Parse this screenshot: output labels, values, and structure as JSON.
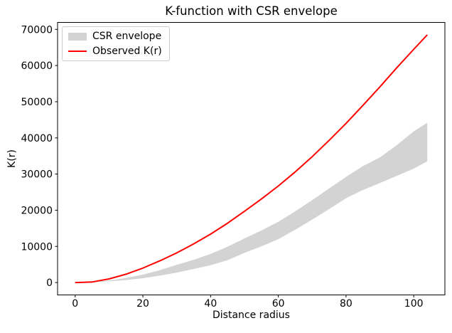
{
  "chart_data": {
    "type": "line",
    "title": "K-function with CSR envelope",
    "xlabel": "Distance radius",
    "ylabel": "K(r)",
    "xlim": [
      -5.2,
      109.2
    ],
    "ylim": [
      -3425,
      71925
    ],
    "xticks": [
      0,
      20,
      40,
      60,
      80,
      100
    ],
    "yticks": [
      0,
      10000,
      20000,
      30000,
      40000,
      50000,
      60000,
      70000
    ],
    "grid": false,
    "legend": {
      "position": "upper-left",
      "entries": [
        {
          "label": "CSR envelope",
          "type": "band",
          "color": "#d3d3d3"
        },
        {
          "label": "Observed K(r)",
          "type": "line",
          "color": "#ff0000"
        }
      ]
    },
    "band": {
      "name": "CSR envelope",
      "color": "#d3d3d3",
      "x": [
        0,
        5,
        10,
        15,
        20,
        25,
        30,
        35,
        40,
        45,
        50,
        55,
        60,
        65,
        70,
        75,
        80,
        85,
        90,
        95,
        100,
        104
      ],
      "low": [
        0,
        80,
        330,
        680,
        1200,
        1900,
        2750,
        3750,
        4800,
        6200,
        8200,
        10000,
        12000,
        14600,
        17400,
        20300,
        23300,
        25600,
        27500,
        29500,
        31500,
        33500
      ],
      "high": [
        0,
        150,
        550,
        1250,
        2200,
        3400,
        4900,
        6300,
        7900,
        9900,
        12200,
        14400,
        16800,
        19700,
        22800,
        26000,
        29200,
        32200,
        34600,
        38000,
        41800,
        44200
      ]
    },
    "series": [
      {
        "name": "Observed K(r)",
        "color": "#ff0000",
        "x": [
          0,
          5,
          10,
          15,
          20,
          25,
          30,
          35,
          40,
          45,
          50,
          55,
          60,
          65,
          70,
          75,
          80,
          85,
          90,
          95,
          100,
          104
        ],
        "y": [
          0,
          150,
          1000,
          2300,
          4000,
          6000,
          8200,
          10700,
          13400,
          16400,
          19700,
          23100,
          26700,
          30600,
          34800,
          39300,
          44000,
          49000,
          54100,
          59400,
          64500,
          68500
        ]
      }
    ]
  }
}
